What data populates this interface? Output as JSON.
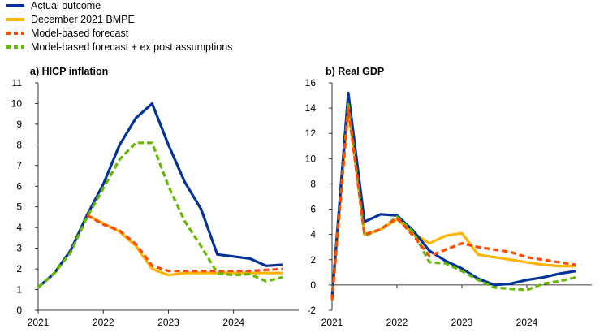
{
  "legend": [
    {
      "label": "Actual outcome",
      "color": "#003299",
      "dash": "solid"
    },
    {
      "label": "December 2021 BMPE",
      "color": "#FFB400",
      "dash": "solid"
    },
    {
      "label": "Model-based forecast",
      "color": "#FF4B00",
      "dash": "dashed"
    },
    {
      "label": "Model-based forecast + ex post assumptions",
      "color": "#65B800",
      "dash": "dashed"
    }
  ],
  "chart_data": [
    {
      "type": "line",
      "title": "a) HICP inflation",
      "ylim": [
        0,
        11
      ],
      "yticks": [
        0,
        1,
        2,
        3,
        4,
        5,
        6,
        7,
        8,
        9,
        10,
        11
      ],
      "xlim": [
        2021.0,
        2025.0
      ],
      "xticks": [
        2021,
        2022,
        2023,
        2024
      ],
      "series": [
        {
          "name": "Actual outcome",
          "x": [
            2021.0,
            2021.25,
            2021.5,
            2021.75,
            2022.0,
            2022.25,
            2022.5,
            2022.75,
            2023.0,
            2023.25,
            2023.5,
            2023.75,
            2024.0,
            2024.25,
            2024.5,
            2024.75
          ],
          "y": [
            1.1,
            1.8,
            2.9,
            4.6,
            6.1,
            8.0,
            9.3,
            10.0,
            8.0,
            6.2,
            4.9,
            2.7,
            2.6,
            2.5,
            2.15,
            2.2
          ]
        },
        {
          "name": "December 2021 BMPE",
          "x": [
            2021.0,
            2021.25,
            2021.5,
            2021.75,
            2022.0,
            2022.25,
            2022.5,
            2022.75,
            2023.0,
            2023.25,
            2023.5,
            2023.75,
            2024.0,
            2024.25,
            2024.5,
            2024.75
          ],
          "y": [
            1.1,
            1.8,
            2.9,
            4.6,
            4.2,
            3.8,
            3.1,
            2.0,
            1.7,
            1.8,
            1.8,
            1.8,
            1.8,
            1.8,
            1.8,
            1.8
          ]
        },
        {
          "name": "Model-based forecast",
          "x": [
            2021.75,
            2022.0,
            2022.25,
            2022.5,
            2022.75,
            2023.0,
            2023.25,
            2023.5,
            2023.75,
            2024.0,
            2024.25,
            2024.5,
            2024.75
          ],
          "y": [
            4.6,
            4.15,
            3.85,
            3.2,
            2.15,
            1.9,
            1.9,
            1.9,
            1.9,
            1.9,
            1.9,
            1.95,
            2.0
          ]
        },
        {
          "name": "Model-based forecast + ex post assumptions",
          "x": [
            2021.0,
            2021.25,
            2021.5,
            2021.75,
            2022.0,
            2022.25,
            2022.5,
            2022.75,
            2023.0,
            2023.25,
            2023.5,
            2023.75,
            2024.0,
            2024.25,
            2024.5,
            2024.75
          ],
          "y": [
            1.1,
            1.8,
            2.8,
            4.5,
            5.9,
            7.3,
            8.1,
            8.1,
            6.0,
            4.3,
            3.1,
            1.8,
            1.7,
            1.75,
            1.4,
            1.6
          ]
        }
      ]
    },
    {
      "type": "line",
      "title": "b) Real GDP",
      "ylim": [
        -2,
        16
      ],
      "yticks": [
        -2,
        0,
        2,
        4,
        6,
        8,
        10,
        12,
        14,
        16
      ],
      "xlim": [
        2021.0,
        2025.0
      ],
      "xticks": [
        2021,
        2022,
        2023,
        2024
      ],
      "series": [
        {
          "name": "Actual outcome",
          "x": [
            2021.0,
            2021.25,
            2021.5,
            2021.75,
            2022.0,
            2022.25,
            2022.5,
            2022.75,
            2023.0,
            2023.25,
            2023.5,
            2023.75,
            2024.0,
            2024.25,
            2024.5,
            2024.75
          ],
          "y": [
            -1.0,
            15.2,
            5.0,
            5.6,
            5.5,
            4.3,
            2.7,
            1.9,
            1.3,
            0.5,
            0.0,
            0.1,
            0.4,
            0.6,
            0.9,
            1.1
          ]
        },
        {
          "name": "December 2021 BMPE",
          "x": [
            2021.0,
            2021.25,
            2021.5,
            2021.75,
            2022.0,
            2022.25,
            2022.5,
            2022.75,
            2023.0,
            2023.25,
            2023.5,
            2023.75,
            2024.0,
            2024.25,
            2024.5,
            2024.75
          ],
          "y": [
            -1.0,
            14.0,
            4.0,
            4.4,
            5.2,
            4.1,
            3.3,
            3.9,
            4.1,
            2.4,
            2.2,
            2.0,
            1.8,
            1.6,
            1.5,
            1.5
          ]
        },
        {
          "name": "Model-based forecast",
          "x": [
            2021.0,
            2021.25,
            2021.5,
            2021.75,
            2022.0,
            2022.25,
            2022.5,
            2022.75,
            2023.0,
            2023.25,
            2023.5,
            2023.75,
            2024.0,
            2024.25,
            2024.5,
            2024.75
          ],
          "y": [
            -1.2,
            14.0,
            4.0,
            4.4,
            5.3,
            3.9,
            2.3,
            2.8,
            3.3,
            3.0,
            2.8,
            2.6,
            2.2,
            2.0,
            1.8,
            1.6
          ]
        },
        {
          "name": "Model-based forecast + ex post assumptions",
          "x": [
            2021.0,
            2021.25,
            2021.5,
            2021.75,
            2022.0,
            2022.25,
            2022.5,
            2022.75,
            2023.0,
            2023.25,
            2023.5,
            2023.75,
            2024.0,
            2024.25,
            2024.5,
            2024.75
          ],
          "y": [
            -1.2,
            14.3,
            3.9,
            4.4,
            5.4,
            4.2,
            1.8,
            1.7,
            1.1,
            0.4,
            -0.2,
            -0.3,
            -0.4,
            0.1,
            0.3,
            0.6
          ]
        }
      ]
    }
  ]
}
